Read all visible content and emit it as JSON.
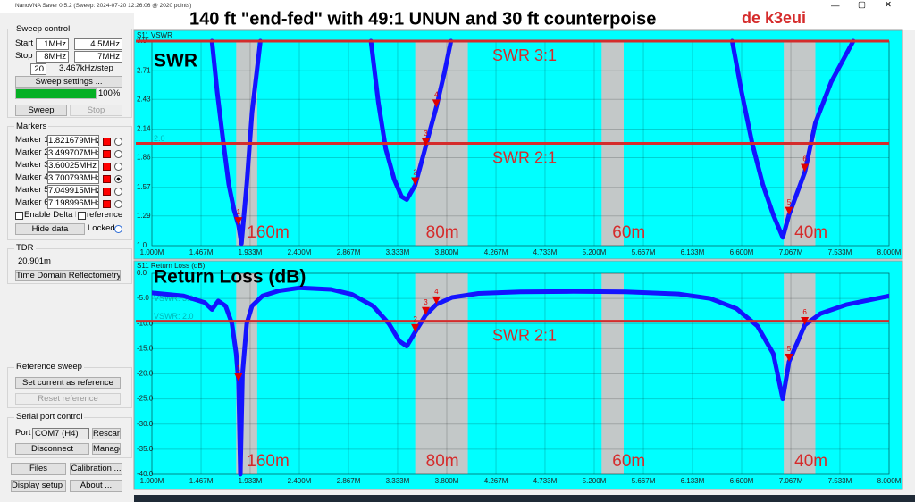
{
  "window": {
    "title": "NanoVNA Saver 0.5.2 (Sweep: 2024-07-20 12:26:06 @ 2020 points)"
  },
  "overlay": {
    "title": "140 ft \"end-fed\" with 49:1 UNUN and 30 ft counterpoise",
    "author": "de k3eui"
  },
  "sidebar": {
    "sweep_control": {
      "title": "Sweep control",
      "start_label": "Start",
      "start": "1MHz",
      "center": "4.5MHz",
      "stop_label": "Stop",
      "stop": "8MHz",
      "span": "7MHz",
      "segments": "20",
      "step": "3.467kHz/step",
      "settings_button": "Sweep settings ...",
      "progress": 100,
      "progress_label": "100%",
      "progress_color": "#06b025",
      "sweep_button": "Sweep",
      "stop_button": "Stop"
    },
    "markers": {
      "title": "Markers",
      "marker_color": "#ff0000",
      "items": [
        {
          "label": "Marker 1",
          "value": "1.821679MHz",
          "selected": false
        },
        {
          "label": "Marker 2",
          "value": "3.499707MHz",
          "selected": false
        },
        {
          "label": "Marker 3",
          "value": "3.60025MHz",
          "selected": false
        },
        {
          "label": "Marker 4",
          "value": "3.700793MHz",
          "selected": true
        },
        {
          "label": "Marker 5",
          "value": "7.049915MHz",
          "selected": false
        },
        {
          "label": "Marker 6",
          "value": "7.198996MHz",
          "selected": false
        }
      ],
      "delta": "Enable Delta M",
      "reference": "reference",
      "hide_button": "Hide data",
      "locked": "Locked"
    },
    "tdr": {
      "title": "TDR",
      "value": "20.901m",
      "button": "Time Domain Reflectometry ..."
    },
    "reference_sweep": {
      "title": "Reference sweep",
      "set_button": "Set current as reference",
      "reset_button": "Reset reference"
    },
    "serial": {
      "title": "Serial port control",
      "port_label": "Port",
      "port": "COM7 (H4)",
      "rescan": "Rescan",
      "disconnect": "Disconnect",
      "manage": "Manage"
    },
    "buttons": [
      "Files",
      "Calibration ...",
      "Display setup ...",
      "About ..."
    ]
  },
  "chart_data": [
    {
      "type": "line",
      "title": "S11 VSWR",
      "label": "SWR",
      "background": "#00ffff",
      "color": "#1414ff",
      "band_color": "#c3c8c8",
      "threshold_color": "#d52b2b",
      "marker_color": "#e00000",
      "grid": true,
      "xlim": [
        1,
        8
      ],
      "xticks": [
        {
          "value": 1,
          "label": "1.000M"
        },
        {
          "value": 1.467,
          "label": "1.467M"
        },
        {
          "value": 1.933,
          "label": "1.933M"
        },
        {
          "value": 2.4,
          "label": "2.400M"
        },
        {
          "value": 2.867,
          "label": "2.867M"
        },
        {
          "value": 3.333,
          "label": "3.333M"
        },
        {
          "value": 3.8,
          "label": "3.800M"
        },
        {
          "value": 4.267,
          "label": "4.267M"
        },
        {
          "value": 4.733,
          "label": "4.733M"
        },
        {
          "value": 5.2,
          "label": "5.200M"
        },
        {
          "value": 5.667,
          "label": "5.667M"
        },
        {
          "value": 6.133,
          "label": "6.133M"
        },
        {
          "value": 6.6,
          "label": "6.600M"
        },
        {
          "value": 7.067,
          "label": "7.067M"
        },
        {
          "value": 7.533,
          "label": "7.533M"
        },
        {
          "value": 8,
          "label": "8.000M"
        }
      ],
      "ylim": [
        1,
        3
      ],
      "yticks": [
        {
          "value": 1,
          "label": "1.0"
        },
        1.29,
        1.57,
        1.86,
        2.14,
        2.43,
        2.71,
        {
          "value": 3,
          "label": "3.0"
        }
      ],
      "bands": [
        {
          "label": "160m",
          "range": [
            1.8,
            2.0
          ]
        },
        {
          "label": "80m",
          "range": [
            3.5,
            4.0
          ]
        },
        {
          "label": "60m",
          "range": [
            5.27,
            5.48
          ]
        },
        {
          "label": "40m",
          "range": [
            7.0,
            7.3
          ]
        }
      ],
      "thresholds": [
        {
          "value": 3,
          "label": "SWR  3:1"
        },
        {
          "value": 2,
          "label": "SWR  2:1"
        }
      ],
      "reference_lines": [
        {
          "value": 2,
          "label": "2.0"
        }
      ],
      "x": [
        1.57,
        1.62,
        1.68,
        1.73,
        1.78,
        1.822,
        1.85,
        1.9,
        1.95,
        2.03,
        2.5,
        3.08,
        3.15,
        3.22,
        3.3,
        3.37,
        3.42,
        3.5,
        3.6,
        3.7,
        3.78,
        3.84,
        5.0,
        6.51,
        6.6,
        6.7,
        6.8,
        6.9,
        6.99,
        7.05,
        7.2,
        7.3,
        7.45,
        7.66
      ],
      "values": [
        3.0,
        2.5,
        2.0,
        1.6,
        1.35,
        1.2,
        1.02,
        1.6,
        2.3,
        3.0,
        null,
        3.0,
        2.4,
        1.95,
        1.65,
        1.48,
        1.45,
        1.59,
        1.97,
        2.35,
        2.7,
        3.0,
        null,
        3.0,
        2.5,
        2.0,
        1.6,
        1.3,
        1.08,
        1.3,
        1.72,
        2.2,
        2.6,
        3.0
      ],
      "markers": [
        {
          "label": "1",
          "x": 1.821679,
          "y": 1.2
        },
        {
          "label": "2",
          "x": 3.499707,
          "y": 1.59
        },
        {
          "label": "3",
          "x": 3.60025,
          "y": 1.97
        },
        {
          "label": "4",
          "x": 3.700793,
          "y": 2.35
        },
        {
          "label": "5",
          "x": 7.049915,
          "y": 1.3
        },
        {
          "label": "6",
          "x": 7.198996,
          "y": 1.72
        }
      ]
    },
    {
      "type": "line",
      "title": "S11 Return Loss (dB)",
      "label": "Return Loss (dB)",
      "background": "#00ffff",
      "color": "#1414ff",
      "band_color": "#c3c8c8",
      "threshold_color": "#d52b2b",
      "marker_color": "#e00000",
      "grid": true,
      "xlim": [
        1,
        8
      ],
      "xticks": [
        {
          "value": 1,
          "label": "1.000M"
        },
        {
          "value": 1.467,
          "label": "1.467M"
        },
        {
          "value": 1.933,
          "label": "1.933M"
        },
        {
          "value": 2.4,
          "label": "2.400M"
        },
        {
          "value": 2.867,
          "label": "2.867M"
        },
        {
          "value": 3.333,
          "label": "3.333M"
        },
        {
          "value": 3.8,
          "label": "3.800M"
        },
        {
          "value": 4.267,
          "label": "4.267M"
        },
        {
          "value": 4.733,
          "label": "4.733M"
        },
        {
          "value": 5.2,
          "label": "5.200M"
        },
        {
          "value": 5.667,
          "label": "5.667M"
        },
        {
          "value": 6.133,
          "label": "6.133M"
        },
        {
          "value": 6.6,
          "label": "6.600M"
        },
        {
          "value": 7.067,
          "label": "7.067M"
        },
        {
          "value": 7.533,
          "label": "7.533M"
        },
        {
          "value": 8,
          "label": "8.000M"
        }
      ],
      "ylim": [
        -40,
        0
      ],
      "yticks": [
        {
          "value": 0,
          "label": "0.0"
        },
        {
          "value": -5,
          "label": "-5.0"
        },
        {
          "value": -10,
          "label": "-10.0"
        },
        {
          "value": -15,
          "label": "-15.0"
        },
        {
          "value": -20,
          "label": "-20.0"
        },
        {
          "value": -25,
          "label": "-25.0"
        },
        {
          "value": -30,
          "label": "-30.0"
        },
        {
          "value": -35,
          "label": "-35.0"
        },
        {
          "value": -40,
          "label": "-40.0"
        }
      ],
      "bands": [
        {
          "label": "160m",
          "range": [
            1.8,
            2.0
          ]
        },
        {
          "label": "80m",
          "range": [
            3.5,
            4.0
          ]
        },
        {
          "label": "60m",
          "range": [
            5.27,
            5.48
          ]
        },
        {
          "label": "40m",
          "range": [
            7.0,
            7.3
          ]
        }
      ],
      "thresholds": [
        {
          "value": -9.54,
          "label": "SWR  2:1"
        }
      ],
      "reference_lines": [
        {
          "value": -6.02,
          "label": "VSWR: 3.0"
        },
        {
          "value": -9.54,
          "label": "VSWR: 2.0"
        }
      ],
      "x": [
        1.0,
        1.3,
        1.5,
        1.57,
        1.63,
        1.7,
        1.76,
        1.8,
        1.822,
        1.84,
        1.86,
        1.9,
        1.95,
        2.05,
        2.2,
        2.4,
        2.7,
        2.9,
        3.1,
        3.25,
        3.35,
        3.42,
        3.5,
        3.6,
        3.7,
        3.85,
        4.1,
        4.5,
        5.0,
        5.5,
        6.0,
        6.3,
        6.55,
        6.75,
        6.9,
        6.99,
        7.05,
        7.2,
        7.35,
        7.6,
        8.0
      ],
      "values": [
        -3.9,
        -4.5,
        -5.8,
        -7.2,
        -5.5,
        -6.5,
        -10,
        -16,
        -21.5,
        -40,
        -20,
        -10,
        -6.5,
        -4.5,
        -3.5,
        -2.9,
        -3.2,
        -4.2,
        -6.5,
        -10,
        -13.5,
        -14.5,
        -11.7,
        -8.3,
        -6.2,
        -4.8,
        -4.0,
        -3.7,
        -3.6,
        -3.7,
        -4.1,
        -5.0,
        -7.0,
        -10.5,
        -16,
        -25,
        -17.6,
        -10.3,
        -8.0,
        -6.2,
        -4.5
      ],
      "markers": [
        {
          "label": "1",
          "x": 1.821679,
          "y": -21.5
        },
        {
          "label": "2",
          "x": 3.499707,
          "y": -11.7
        },
        {
          "label": "3",
          "x": 3.60025,
          "y": -8.3
        },
        {
          "label": "4",
          "x": 3.700793,
          "y": -6.2
        },
        {
          "label": "5",
          "x": 7.049915,
          "y": -17.6
        },
        {
          "label": "6",
          "x": 7.198996,
          "y": -10.3
        }
      ]
    }
  ]
}
